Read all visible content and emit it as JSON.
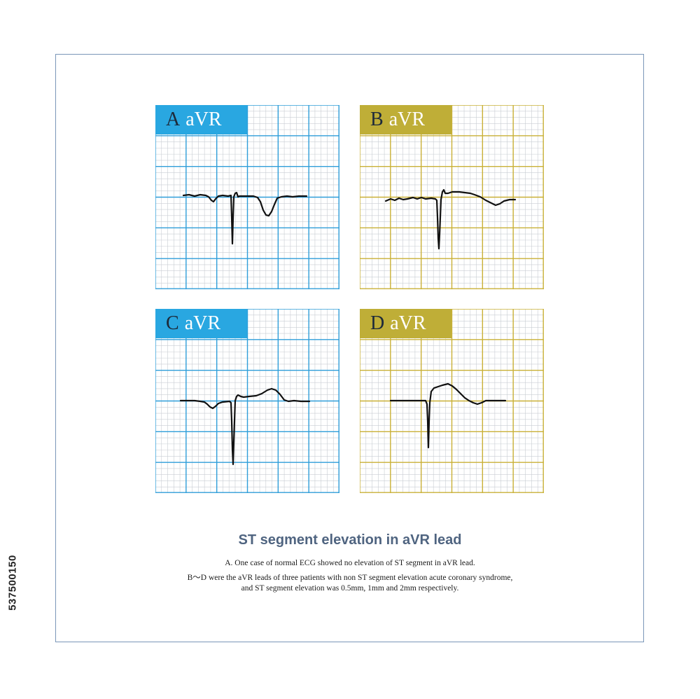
{
  "panels": [
    {
      "letter": "A",
      "lead": "aVR",
      "theme_color": "#29a7e1",
      "grid_color": "#2f9ed9"
    },
    {
      "letter": "B",
      "lead": "aVR",
      "theme_color": "#bfae37",
      "grid_color": "#c9b037"
    },
    {
      "letter": "C",
      "lead": "aVR",
      "theme_color": "#29a7e1",
      "grid_color": "#2f9ed9"
    },
    {
      "letter": "D",
      "lead": "aVR",
      "theme_color": "#bfae37",
      "grid_color": "#c9b037"
    }
  ],
  "caption": {
    "title": "ST segment elevation in aVR lead",
    "line1": "A. One case of normal ECG showed no elevation of ST segment in aVR lead.",
    "line2": "B～D were the aVR leads of three patients with non ST segment elevation acute coronary syndrome,",
    "line3": "and ST segment elevation was 0.5mm, 1mm and 2mm respectively."
  },
  "side_id": "537500150",
  "colors": {
    "frame": "#7a96b8",
    "title": "#4f6480",
    "minor_grid": "#c9cdd3"
  }
}
